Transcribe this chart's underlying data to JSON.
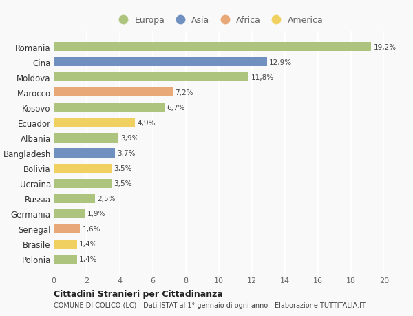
{
  "categories": [
    "Romania",
    "Cina",
    "Moldova",
    "Marocco",
    "Kosovo",
    "Ecuador",
    "Albania",
    "Bangladesh",
    "Bolivia",
    "Ucraina",
    "Russia",
    "Germania",
    "Senegal",
    "Brasile",
    "Polonia"
  ],
  "values": [
    19.2,
    12.9,
    11.8,
    7.2,
    6.7,
    4.9,
    3.9,
    3.7,
    3.5,
    3.5,
    2.5,
    1.9,
    1.6,
    1.4,
    1.4
  ],
  "labels": [
    "19,2%",
    "12,9%",
    "11,8%",
    "7,2%",
    "6,7%",
    "4,9%",
    "3,9%",
    "3,7%",
    "3,5%",
    "3,5%",
    "2,5%",
    "1,9%",
    "1,6%",
    "1,4%",
    "1,4%"
  ],
  "continents": [
    "Europa",
    "Asia",
    "Europa",
    "Africa",
    "Europa",
    "America",
    "Europa",
    "Asia",
    "America",
    "Europa",
    "Europa",
    "Europa",
    "Africa",
    "America",
    "Europa"
  ],
  "colors": {
    "Europa": "#adc47e",
    "Asia": "#7090c0",
    "Africa": "#e8a878",
    "America": "#f0d060"
  },
  "legend_order": [
    "Europa",
    "Asia",
    "Africa",
    "America"
  ],
  "title1": "Cittadini Stranieri per Cittadinanza",
  "title2": "COMUNE DI COLICO (LC) - Dati ISTAT al 1° gennaio di ogni anno - Elaborazione TUTTITALIA.IT",
  "xlim": [
    0,
    20
  ],
  "xticks": [
    0,
    2,
    4,
    6,
    8,
    10,
    12,
    14,
    16,
    18,
    20
  ],
  "background_color": "#f9f9f9",
  "grid_color": "#ffffff",
  "bar_height": 0.6
}
